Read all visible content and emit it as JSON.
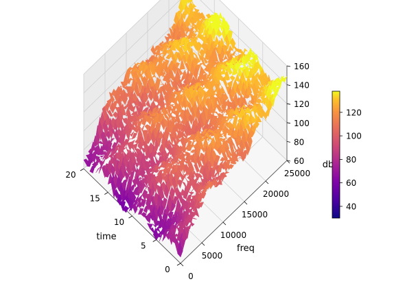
{
  "chart_data": {
    "type": "surface3d",
    "title": "",
    "colormap": "plasma",
    "axes": {
      "x": {
        "label": "time",
        "range": [
          0,
          20
        ],
        "ticks": [
          0,
          5,
          10,
          15,
          20
        ]
      },
      "y": {
        "label": "freq",
        "range": [
          0,
          25000
        ],
        "ticks": [
          0,
          5000,
          10000,
          15000,
          20000,
          25000
        ]
      },
      "z": {
        "label": "db",
        "range": [
          60,
          160
        ],
        "ticks": [
          60,
          80,
          100,
          120,
          140,
          160
        ]
      }
    },
    "colorbar": {
      "range": [
        30,
        138
      ],
      "ticks": [
        40,
        60,
        80,
        100,
        120
      ]
    },
    "grid": true,
    "surface_profile": {
      "freq": [
        0,
        2500,
        5000,
        7500,
        10000,
        12500,
        15000,
        17500,
        20000,
        22500,
        25000
      ],
      "db_at_time_0": [
        65,
        80,
        95,
        105,
        110,
        115,
        118,
        122,
        125,
        132,
        138
      ],
      "db_at_time_20": [
        70,
        85,
        98,
        106,
        110,
        114,
        118,
        121,
        124,
        128,
        132
      ]
    }
  }
}
